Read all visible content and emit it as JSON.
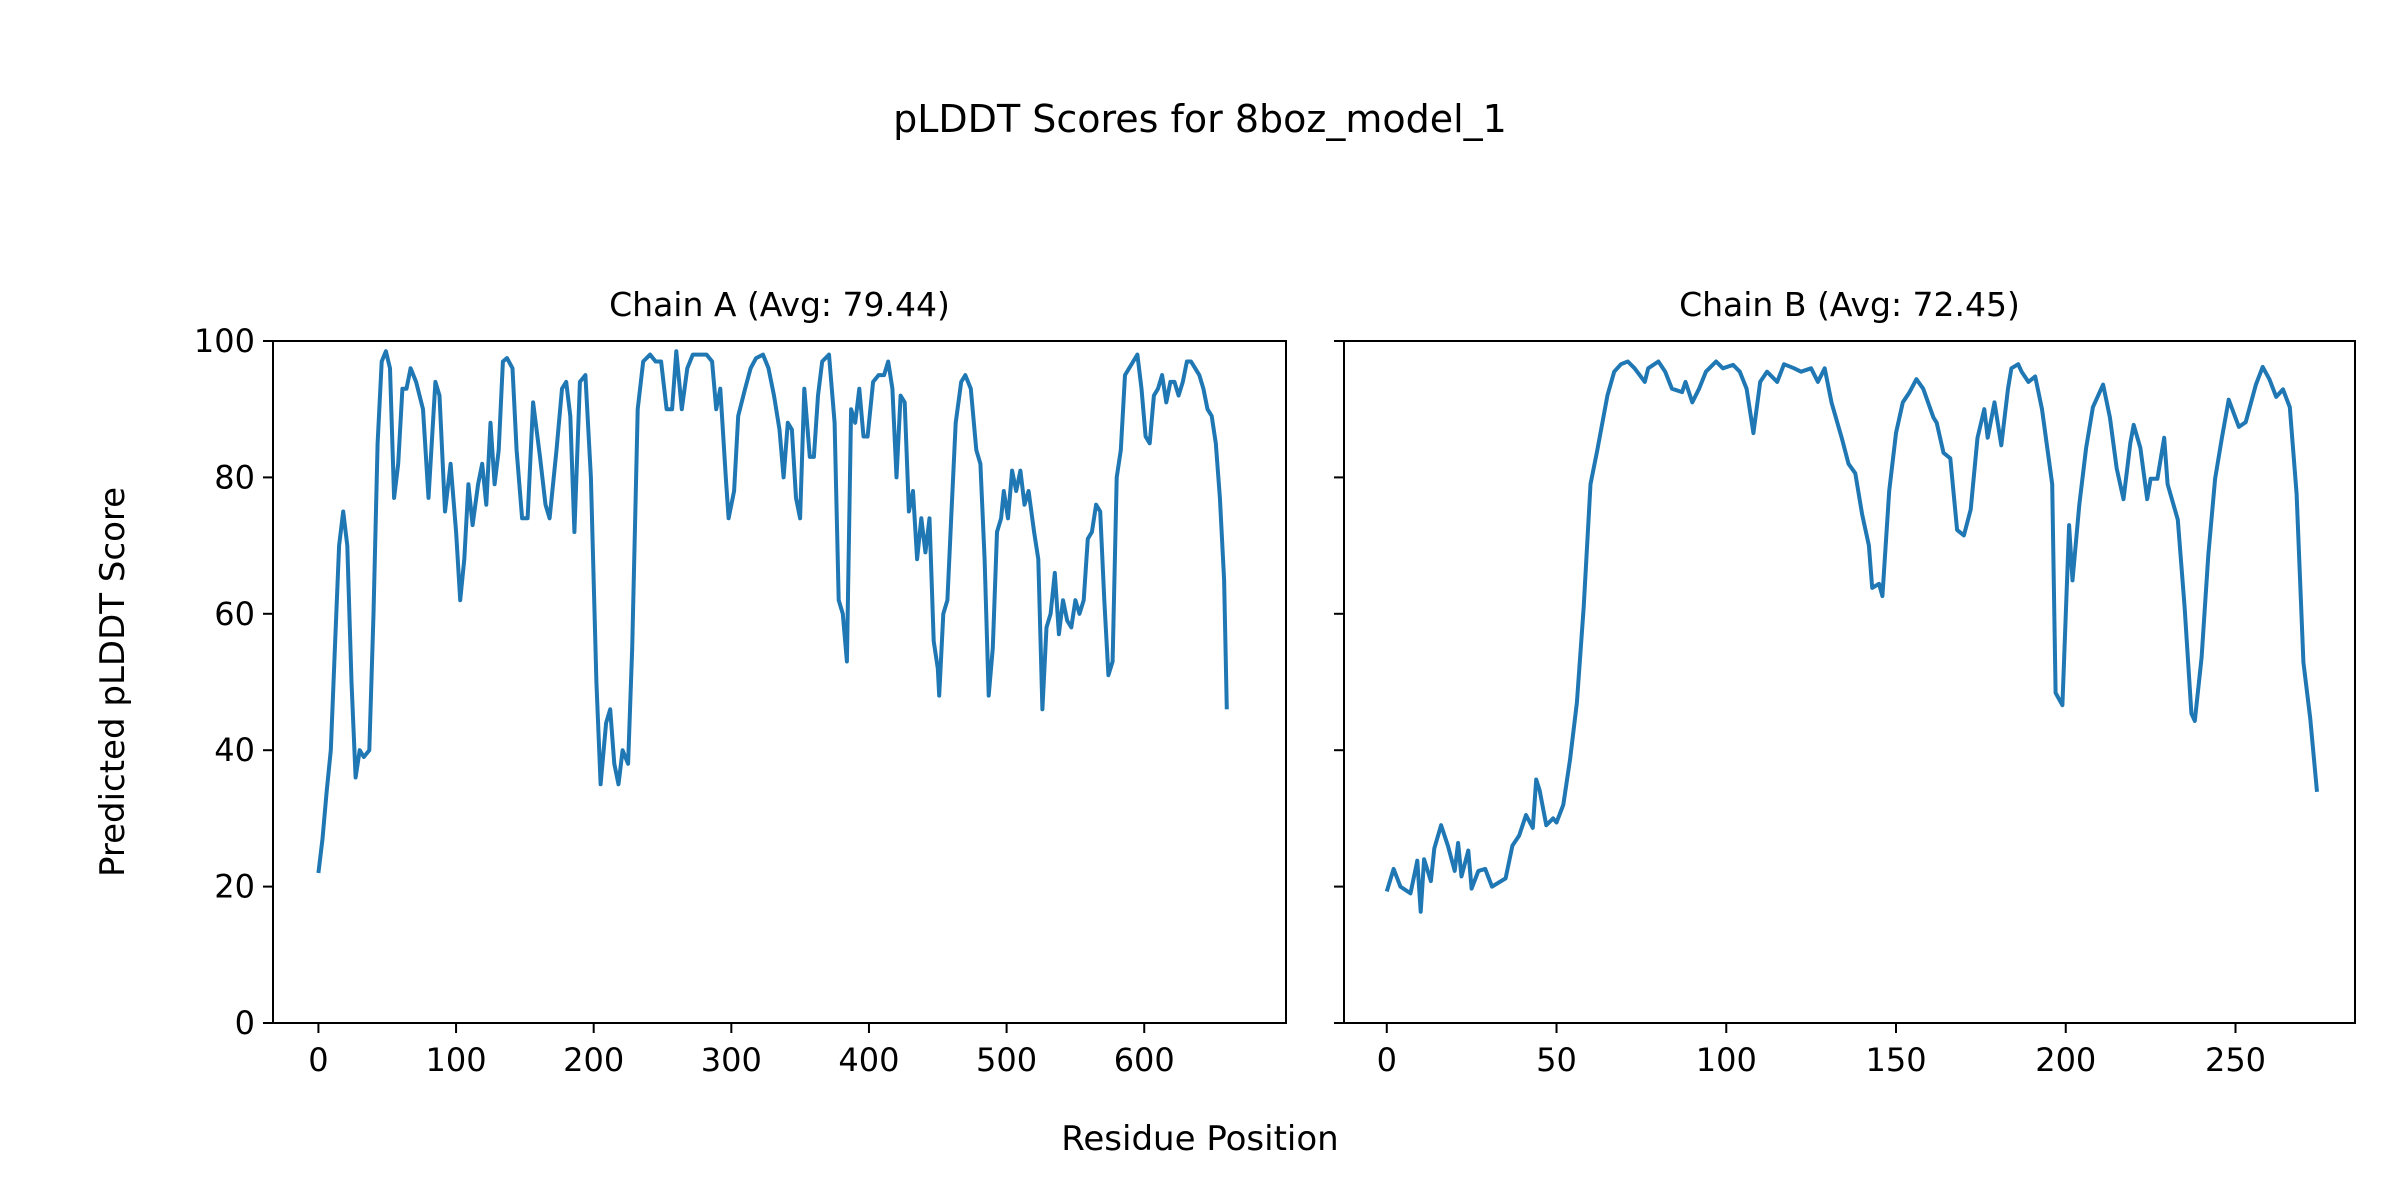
{
  "chart_data": {
    "type": "line",
    "title": "pLDDT Scores for 8boz_model_1",
    "xlabel": "Residue Position",
    "ylabel": "Predicted pLDDT Score",
    "line_color": "#1f77b4",
    "ylim": [
      0,
      100
    ],
    "yticks": [
      0,
      20,
      40,
      60,
      80,
      100
    ],
    "sharey": true,
    "grid": false,
    "panels": [
      {
        "title": "Chain A (Avg: 79.44)",
        "xlim": [
          -33,
          703
        ],
        "xticks": [
          0,
          100,
          200,
          300,
          400,
          500,
          600
        ],
        "x": [
          0,
          3,
          6,
          9,
          12,
          15,
          18,
          21,
          24,
          27,
          30,
          33,
          37,
          40,
          43,
          46,
          49,
          52,
          55,
          58,
          61,
          64,
          67,
          71,
          76,
          80,
          85,
          88,
          92,
          96,
          100,
          103,
          106,
          109,
          112,
          116,
          119,
          122,
          125,
          128,
          131,
          134,
          137,
          141,
          144,
          148,
          152,
          156,
          161,
          165,
          168,
          173,
          177,
          180,
          183,
          186,
          190,
          194,
          198,
          202,
          205,
          209,
          212,
          215,
          218,
          221,
          225,
          228,
          232,
          236,
          241,
          245,
          249,
          253,
          257,
          260,
          264,
          268,
          272,
          277,
          282,
          286,
          289,
          292,
          296,
          298,
          302,
          305,
          310,
          314,
          318,
          323,
          327,
          331,
          335,
          338,
          341,
          344,
          347,
          350,
          353,
          357,
          360,
          363,
          366,
          371,
          375,
          378,
          381,
          384,
          387,
          390,
          393,
          396,
          399,
          403,
          407,
          411,
          414,
          417,
          420,
          423,
          426,
          429,
          432,
          435,
          438,
          441,
          444,
          447,
          450,
          451,
          454,
          457,
          460,
          463,
          467,
          470,
          474,
          478,
          481,
          484,
          487,
          490,
          493,
          496,
          498,
          501,
          504,
          507,
          510,
          513,
          516,
          520,
          523,
          526,
          529,
          532,
          535,
          538,
          541,
          544,
          547,
          550,
          553,
          556,
          559,
          562,
          565,
          568,
          571,
          574,
          577,
          580,
          583,
          586,
          589,
          592,
          595,
          598,
          601,
          604,
          607,
          610,
          613,
          616,
          619,
          622,
          625,
          628,
          631,
          634,
          637,
          640,
          643,
          646,
          649,
          652,
          655,
          658,
          660
        ],
        "values": [
          22,
          27,
          34,
          40,
          55,
          70,
          75,
          70,
          50,
          36,
          40,
          39,
          40,
          60,
          85,
          97,
          98.5,
          96,
          77,
          82,
          93,
          93,
          96,
          94,
          90,
          77,
          94,
          92,
          75,
          82,
          72,
          62,
          68,
          79,
          73,
          79,
          82,
          76,
          88,
          79,
          84,
          97,
          97.5,
          96,
          84,
          74,
          74,
          91,
          83,
          76,
          74,
          84,
          93,
          94,
          89,
          72,
          94,
          95,
          80,
          50,
          35,
          44,
          46,
          38,
          35,
          40,
          38,
          55,
          90,
          97,
          98,
          97,
          97,
          90,
          90,
          98.5,
          90,
          96,
          98,
          98,
          98,
          97,
          90,
          93,
          80,
          74,
          78,
          89,
          93,
          96,
          97.5,
          98,
          96,
          92,
          87,
          80,
          88,
          87,
          77,
          74,
          93,
          83,
          83,
          92,
          97,
          98,
          88,
          62,
          60,
          53,
          90,
          88,
          93,
          86,
          86,
          94,
          95,
          95,
          97,
          93,
          80,
          92,
          91,
          75,
          78,
          68,
          74,
          69,
          74,
          56,
          52,
          48,
          60,
          62,
          75,
          88,
          94,
          95,
          93,
          84,
          82,
          68,
          48,
          55,
          72,
          74,
          78,
          74,
          81,
          78,
          81,
          76,
          78,
          72,
          68,
          46,
          58,
          60,
          66,
          57,
          62,
          59,
          58,
          62,
          60,
          62,
          71,
          72,
          76,
          75,
          62,
          51,
          53,
          80,
          84,
          95,
          96,
          97,
          98,
          93,
          86,
          85,
          92,
          93,
          95,
          91,
          94,
          94,
          92,
          94,
          97,
          97,
          96,
          95,
          93,
          90,
          89,
          85,
          77,
          65,
          46
        ]
      },
      {
        "title": "Chain B (Avg: 72.45)",
        "xlim": [
          -12.6,
          285.2
        ],
        "xticks": [
          0,
          50,
          100,
          150,
          200,
          250
        ],
        "x": [
          0,
          2,
          4,
          7,
          9,
          10,
          11,
          13,
          14,
          16,
          18,
          20,
          21,
          22,
          24,
          25,
          27,
          29,
          31,
          35,
          37,
          39,
          41,
          43,
          44,
          45,
          47,
          49,
          50,
          52,
          54,
          56,
          58,
          60,
          62,
          65,
          67,
          69,
          71,
          73,
          76,
          77,
          80,
          82,
          84,
          87,
          88,
          90,
          92,
          94,
          97,
          99,
          102,
          104,
          106,
          108,
          110,
          112,
          115,
          117,
          120,
          122,
          125,
          127,
          129,
          131,
          134,
          136,
          138,
          140,
          142,
          143,
          145,
          146,
          148,
          150,
          152,
          154,
          156,
          158,
          161,
          162,
          164,
          166,
          168,
          170,
          172,
          174,
          176,
          177,
          179,
          181,
          183,
          184,
          186,
          187,
          189,
          191,
          193,
          196,
          197,
          199,
          201,
          202,
          204,
          206,
          208,
          211,
          213,
          215,
          217,
          219,
          220,
          222,
          224,
          225,
          227,
          229,
          230,
          233,
          235,
          237,
          238,
          240,
          242,
          244,
          246,
          248,
          251,
          253,
          256,
          258,
          260,
          262,
          264,
          266,
          268,
          270,
          272,
          274
        ],
        "values": [
          19.3,
          22.6,
          20,
          19,
          23.8,
          16.3,
          24,
          20.8,
          25.6,
          29,
          26,
          22.3,
          26.4,
          21.5,
          25.3,
          19.7,
          22.3,
          22.6,
          20,
          21.2,
          26,
          27.5,
          30.5,
          28.6,
          35.7,
          34.2,
          29,
          30,
          29.4,
          32,
          38.7,
          47,
          61,
          79,
          84,
          92,
          95.5,
          96.6,
          97,
          96,
          94,
          96,
          97,
          95.5,
          93,
          92.5,
          94,
          91,
          93,
          95.5,
          97,
          96,
          96.5,
          95.5,
          93,
          86.5,
          94,
          95.5,
          94,
          96.6,
          96,
          95.5,
          96,
          94,
          96,
          91,
          85.8,
          82,
          80.6,
          74.6,
          70,
          63.8,
          64.4,
          62.6,
          78,
          86.5,
          91,
          92.5,
          94.4,
          93,
          88.8,
          88,
          83.6,
          82.8,
          72.3,
          71.5,
          75.3,
          85.8,
          90,
          85.8,
          91,
          84.7,
          93,
          96,
          96.6,
          95.5,
          94,
          94.8,
          90,
          79,
          48.4,
          46.6,
          73,
          64.9,
          76,
          84.3,
          90.3,
          93.6,
          88.8,
          81.3,
          76.8,
          85,
          87.7,
          84.3,
          76.8,
          79.8,
          79.8,
          85.8,
          79,
          73.8,
          61,
          45.4,
          44.3,
          53.6,
          68.6,
          79.8,
          85.8,
          91.4,
          87.4,
          88.1,
          93.6,
          96.2,
          94.4,
          91.8,
          92.9,
          90.3,
          77.6,
          52.9,
          44.7,
          33.9
        ]
      }
    ]
  }
}
